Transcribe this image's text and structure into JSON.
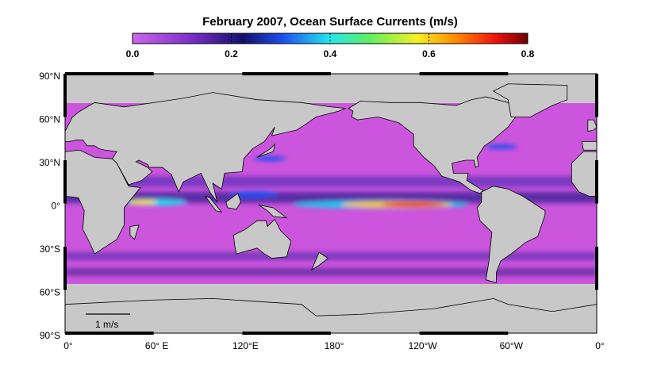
{
  "header": {
    "title": "February 2007, Ocean Surface Currents  (m/s)"
  },
  "colorbar": {
    "lim": [
      0,
      0.8
    ],
    "ticks": [
      {
        "value": 0,
        "label": "0.0"
      },
      0.2,
      0.4,
      0.6,
      0.8
    ]
  },
  "map": {
    "lat_labels": [
      "90°N",
      "60°N",
      "30°N",
      "0°",
      "30°S",
      "60°S",
      "90°S"
    ],
    "lon_labels": [
      "0°",
      "60° E",
      "120°E",
      "180°",
      "120°W",
      "60°W",
      "0°"
    ],
    "scale_label": "1 m/s"
  }
}
